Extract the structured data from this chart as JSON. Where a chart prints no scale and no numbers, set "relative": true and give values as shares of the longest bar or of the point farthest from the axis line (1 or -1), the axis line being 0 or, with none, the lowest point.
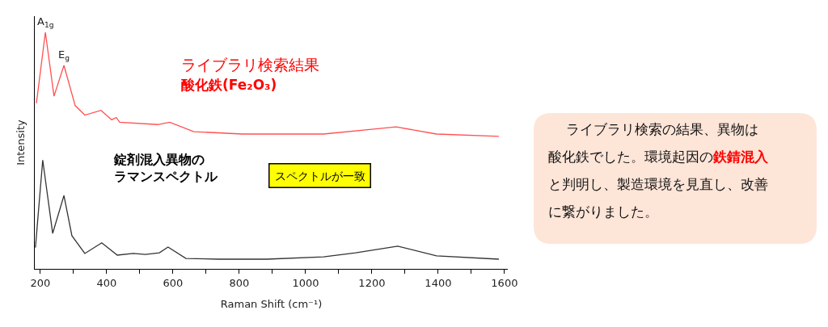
{
  "chart_data": {
    "type": "line",
    "relative": true,
    "xlabel": "Raman Shift (cm⁻¹)",
    "ylabel": "Intensity",
    "xlim": [
      183,
      1610
    ],
    "xticks": [
      200,
      {
        "value": 300,
        "label": null
      },
      400,
      {
        "value": 500,
        "label": null
      },
      600,
      {
        "value": 700,
        "label": null
      },
      800,
      {
        "value": 900,
        "label": null
      },
      1000,
      {
        "value": 1100,
        "label": null
      },
      1200,
      {
        "value": 1300,
        "label": null
      },
      1400,
      {
        "value": 1500,
        "label": null
      },
      1600
    ],
    "marker": "none",
    "line_style": "solid",
    "series": [
      {
        "color": "#ff5050",
        "x": [
          188,
          215,
          241,
          271,
          305,
          334,
          383,
          415,
          429,
          439,
          554,
          590,
          663,
          810,
          907,
          1054,
          1200,
          1273,
          1395,
          1583
        ],
        "values": [
          0.7,
          1.0,
          0.73,
          0.86,
          0.69,
          0.65,
          0.67,
          0.63,
          0.64,
          0.62,
          0.61,
          0.62,
          0.58,
          0.57,
          0.57,
          0.57,
          0.59,
          0.6,
          0.57,
          0.56
        ]
      },
      {
        "color": "#333333",
        "x": [
          185,
          207,
          237,
          271,
          295,
          334,
          385,
          432,
          480,
          517,
          559,
          585,
          639,
          737,
          883,
          1054,
          1151,
          1278,
          1395,
          1583
        ],
        "values": [
          0.09,
          0.46,
          0.15,
          0.31,
          0.14,
          0.065,
          0.11,
          0.058,
          0.065,
          0.061,
          0.068,
          0.092,
          0.044,
          0.041,
          0.041,
          0.051,
          0.068,
          0.096,
          0.055,
          0.041
        ]
      }
    ],
    "annotations": [
      {
        "text": "A$_{1g}$",
        "x": 215,
        "y": 1.0
      },
      {
        "text": "E$_{g}$",
        "x": 271,
        "y": 0.86
      },
      "ライブラリ検索結果",
      "酸化鉄(Fe₂O₃)",
      "錠剤混入異物のラマンスペクトル",
      "スペクトルが一致",
      "ライブラリ検索の結果、異物は酸化鉄でした。環境起因の",
      "鉄錆混入",
      "と判明し、製造環境を見直し、改善に繋がりました。"
    ]
  }
}
